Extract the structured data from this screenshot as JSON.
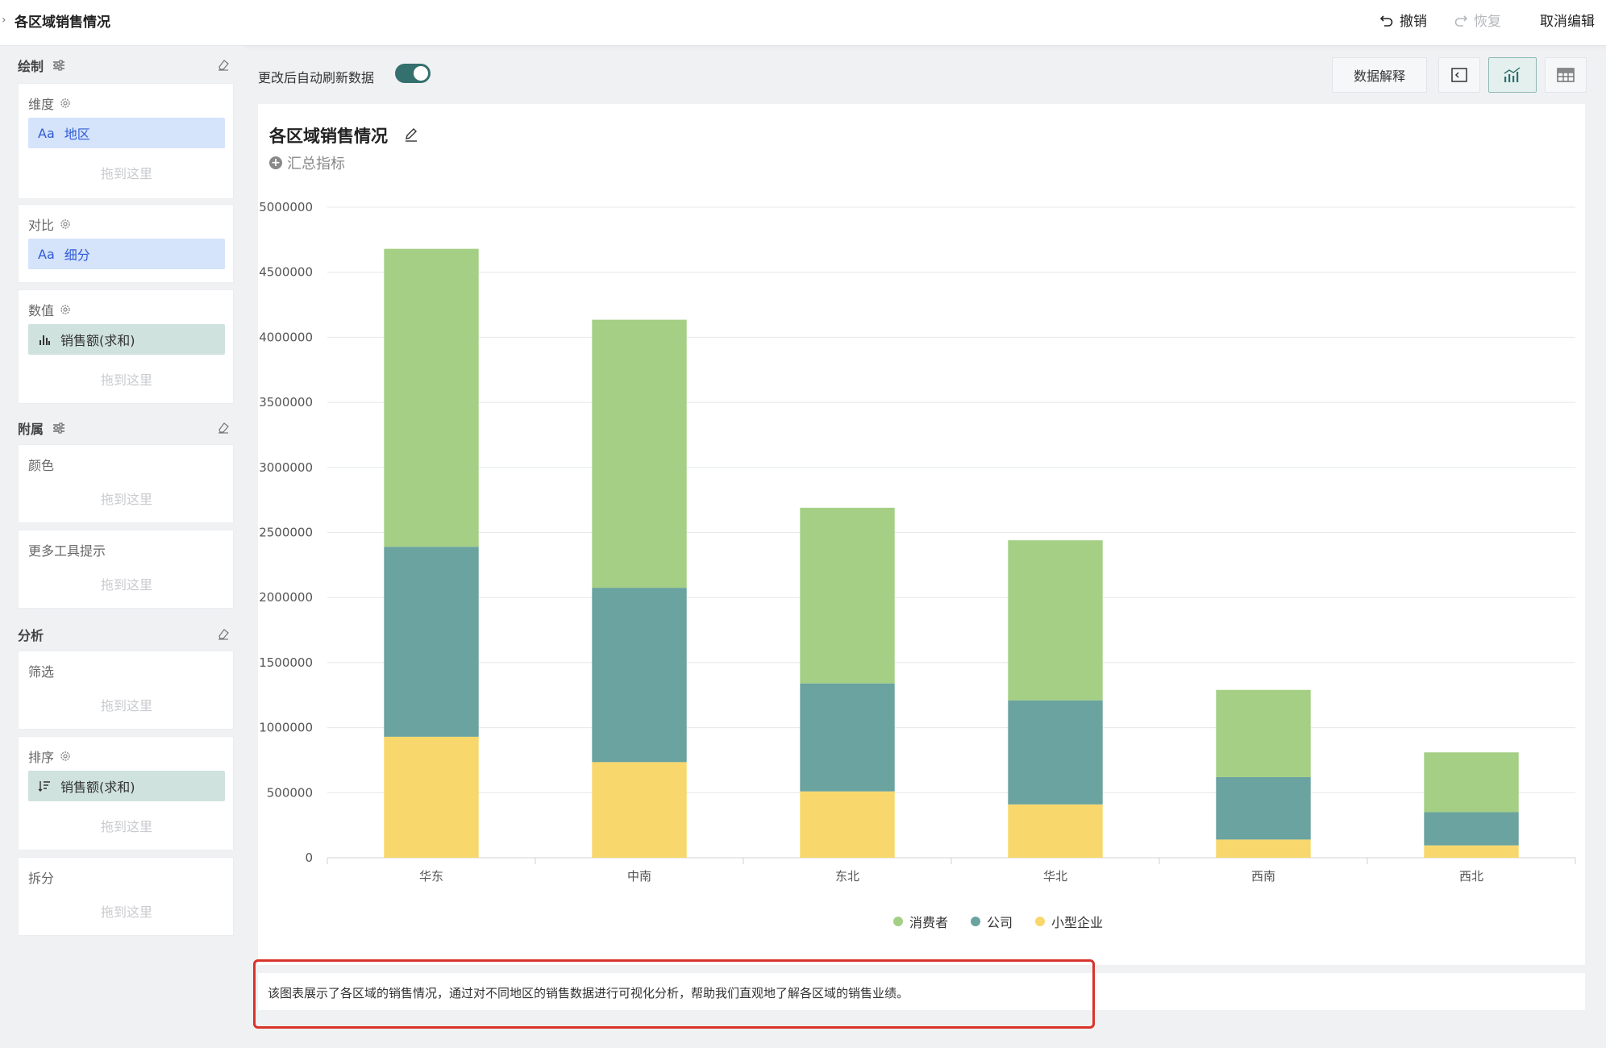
{
  "header": {
    "title": "各区域销售情况",
    "undo": "撤销",
    "redo": "恢复",
    "cancel_edit": "取消编辑"
  },
  "sidebar": {
    "draw_section": "绘制",
    "dimension": {
      "label": "维度",
      "field": "地区",
      "type_icon": "Aa",
      "drop": "拖到这里"
    },
    "compare": {
      "label": "对比",
      "field": "细分",
      "type_icon": "Aa"
    },
    "value": {
      "label": "数值",
      "field": "销售额(求和)",
      "drop": "拖到这里"
    },
    "attach_section": "附属",
    "color": {
      "label": "颜色",
      "drop": "拖到这里"
    },
    "tooltip": {
      "label": "更多工具提示",
      "drop": "拖到这里"
    },
    "analysis_section": "分析",
    "filter": {
      "label": "筛选",
      "drop": "拖到这里"
    },
    "sort": {
      "label": "排序",
      "field": "销售额(求和)",
      "drop": "拖到这里"
    },
    "split": {
      "label": "拆分",
      "drop": "拖到这里"
    }
  },
  "toolbar": {
    "auto_refresh": "更改后自动刷新数据",
    "auto_refresh_on": true,
    "explain": "数据解释"
  },
  "chart_card": {
    "title": "各区域销售情况",
    "summary": "汇总指标"
  },
  "chart_data": {
    "type": "bar",
    "stacked": true,
    "categories": [
      "华东",
      "中南",
      "东北",
      "华北",
      "西南",
      "西北"
    ],
    "series": [
      {
        "name": "小型企业",
        "color": "#f8d86c",
        "values": [
          930000,
          735000,
          510000,
          410000,
          140000,
          95000
        ]
      },
      {
        "name": "公司",
        "color": "#6aa39f",
        "values": [
          1460000,
          1340000,
          830000,
          800000,
          480000,
          255000
        ]
      },
      {
        "name": "消费者",
        "color": "#a4cf85",
        "values": [
          2290000,
          2060000,
          1350000,
          1230000,
          670000,
          460000
        ]
      }
    ],
    "legend_order": [
      "消费者",
      "公司",
      "小型企业"
    ],
    "ylim": [
      0,
      5000000
    ],
    "yticks": [
      "0",
      "500000",
      "1000000",
      "1500000",
      "2000000",
      "2500000",
      "3000000",
      "3500000",
      "4000000",
      "4500000",
      "5000000"
    ],
    "grid": true,
    "legend_position": "bottom"
  },
  "description": "该图表展示了各区域的销售情况，通过对不同地区的销售数据进行可视化分析，帮助我们直观地了解各区域的销售业绩。"
}
